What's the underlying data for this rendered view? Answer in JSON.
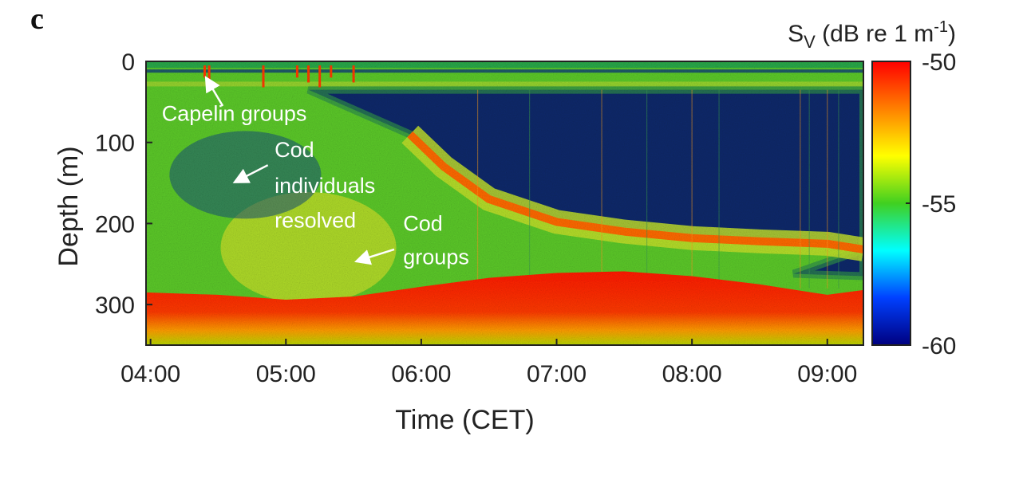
{
  "panel_label": "c",
  "chart_data": {
    "type": "heatmap",
    "title": "",
    "xlabel": "Time (CET)",
    "ylabel": "Depth (m)",
    "xlim": [
      "03:58",
      "09:16"
    ],
    "ylim": [
      0,
      350
    ],
    "x_ticks": [
      "04:00",
      "05:00",
      "06:00",
      "07:00",
      "08:00",
      "09:00"
    ],
    "y_ticks": [
      0,
      100,
      200,
      300
    ],
    "colorbar": {
      "label_main": "S",
      "label_sub": "V",
      "label_units": " (dB re 1 m",
      "label_exp": "-1",
      "label_close": ")",
      "min": -60,
      "max": -50,
      "ticks": [
        -50,
        -55,
        -60
      ],
      "colormap": [
        "#00007f",
        "#0040ff",
        "#00ffff",
        "#40d020",
        "#ffff00",
        "#ff8000",
        "#ff0000"
      ]
    },
    "seabed_depth": [
      {
        "time": "03:58",
        "depth": 285
      },
      {
        "time": "04:30",
        "depth": 288
      },
      {
        "time": "05:00",
        "depth": 294
      },
      {
        "time": "05:30",
        "depth": 290
      },
      {
        "time": "06:00",
        "depth": 278
      },
      {
        "time": "06:30",
        "depth": 267
      },
      {
        "time": "07:00",
        "depth": 261
      },
      {
        "time": "07:30",
        "depth": 259
      },
      {
        "time": "08:00",
        "depth": 265
      },
      {
        "time": "08:30",
        "depth": 275
      },
      {
        "time": "09:00",
        "depth": 288
      },
      {
        "time": "09:16",
        "depth": 282
      }
    ],
    "cod_group_depth": [
      {
        "time": "05:55",
        "depth": 90
      },
      {
        "time": "06:10",
        "depth": 130
      },
      {
        "time": "06:30",
        "depth": 170
      },
      {
        "time": "07:00",
        "depth": 198
      },
      {
        "time": "07:30",
        "depth": 210
      },
      {
        "time": "08:00",
        "depth": 218
      },
      {
        "time": "08:30",
        "depth": 222
      },
      {
        "time": "09:00",
        "depth": 225
      },
      {
        "time": "09:16",
        "depth": 232
      }
    ],
    "annotations": [
      {
        "text": "Capelin groups",
        "time": "04:05",
        "depth": 73,
        "arrow_to": {
          "time": "04:25",
          "depth": 22
        }
      },
      {
        "text": "Cod",
        "time": "04:55",
        "depth": 118,
        "arrow_to": {
          "time": "04:38",
          "depth": 148
        }
      },
      {
        "text": "individuals",
        "time": "04:55",
        "depth": 162
      },
      {
        "text": "resolved",
        "time": "04:55",
        "depth": 205
      },
      {
        "text": "Cod",
        "time": "05:52",
        "depth": 209
      },
      {
        "text": "groups",
        "time": "05:52",
        "depth": 250,
        "arrow_to": {
          "time": "05:32",
          "depth": 245
        }
      }
    ]
  }
}
